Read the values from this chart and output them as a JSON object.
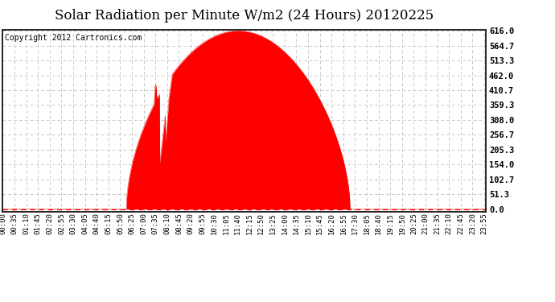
{
  "title": "Solar Radiation per Minute W/m2 (24 Hours) 20120225",
  "title_fontsize": 12,
  "copyright_text": "Copyright 2012 Cartronics.com",
  "copyright_fontsize": 7,
  "background_color": "#ffffff",
  "plot_bg_color": "#ffffff",
  "fill_color": "#ff0000",
  "line_color": "#ff0000",
  "grid_color": "#c8c8c8",
  "dashed_line_color": "#ff0000",
  "ytick_values": [
    0.0,
    51.3,
    102.7,
    154.0,
    205.3,
    256.7,
    308.0,
    359.3,
    410.7,
    462.0,
    513.3,
    564.7,
    616.0
  ],
  "ymax": 616.0,
  "ymin": -8.0,
  "peak_value": 616.0,
  "peak_minute": 690,
  "sunrise_minute": 368,
  "sunset_minute": 1035,
  "total_minutes": 1440,
  "tick_interval": 35
}
